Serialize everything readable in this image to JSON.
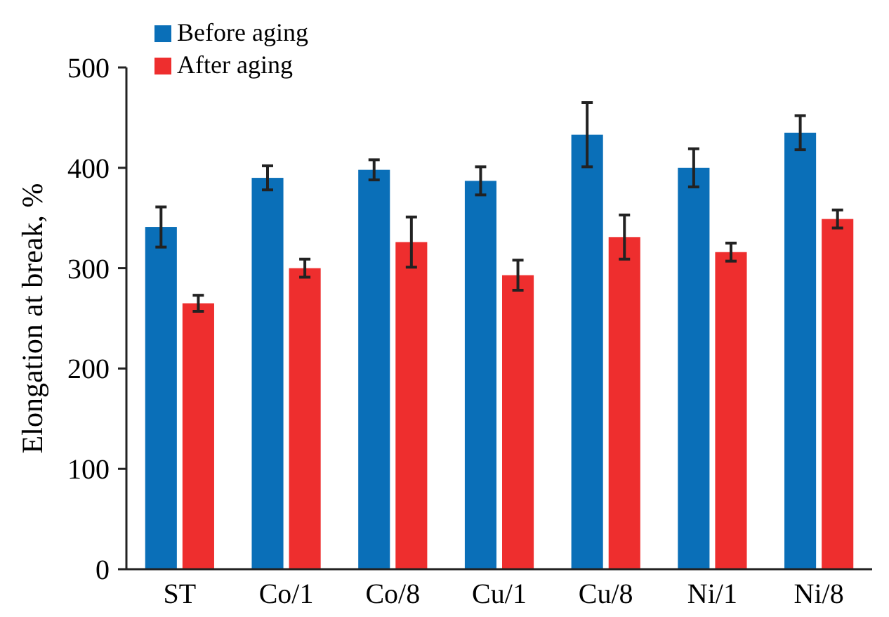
{
  "chart_data": {
    "type": "bar",
    "ylabel": "Elongation at break, %",
    "categories": [
      "ST",
      "Co/1",
      "Co/8",
      "Cu/1",
      "Cu/8",
      "Ni/1",
      "Ni/8"
    ],
    "series": [
      {
        "name": "Before aging",
        "color": "#0a6fb8",
        "values": [
          341,
          390,
          398,
          387,
          433,
          400,
          435
        ],
        "errors": [
          20,
          12,
          10,
          14,
          32,
          19,
          17
        ]
      },
      {
        "name": "After aging",
        "color": "#ee2e2e",
        "values": [
          265,
          300,
          326,
          293,
          331,
          316,
          349
        ],
        "errors": [
          8,
          9,
          25,
          15,
          22,
          9,
          9
        ]
      }
    ],
    "ylim": [
      0,
      500
    ],
    "yticks": [
      0,
      100,
      200,
      300,
      400,
      500
    ],
    "grid": false,
    "legend": "top left"
  }
}
